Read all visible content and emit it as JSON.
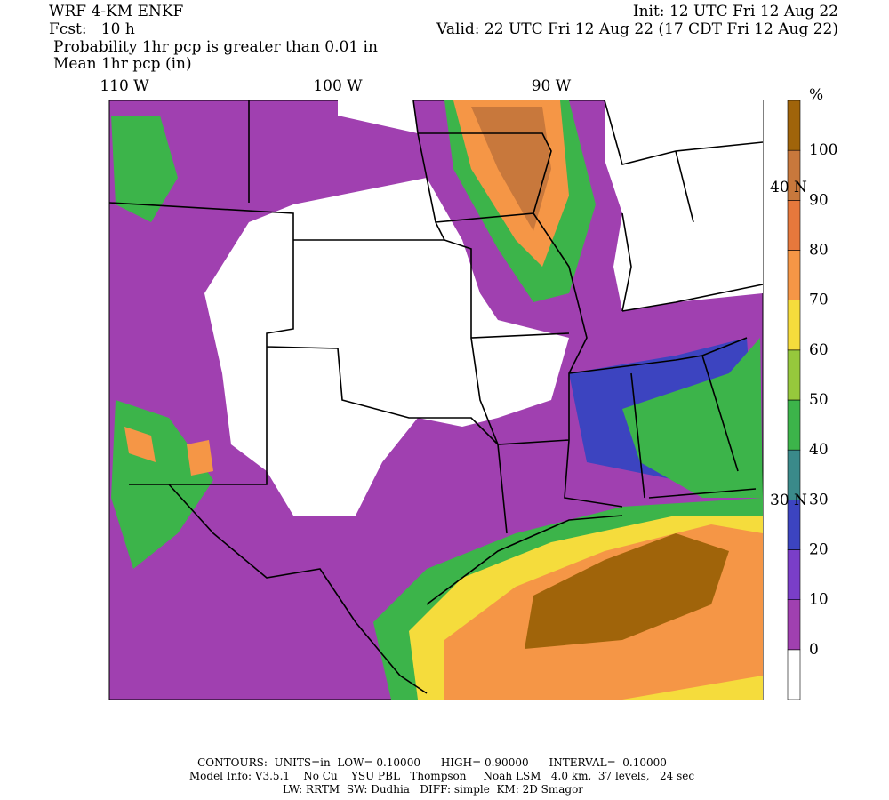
{
  "header": {
    "left": [
      "WRF 4-KM ENKF",
      "Fcst:   10 h",
      "Probability 1hr pcp is greater than 0.01 in",
      "Mean 1hr pcp (in)"
    ],
    "right": [
      "Init: 12 UTC Fri 12 Aug 22",
      "Valid: 22 UTC Fri 12 Aug 22 (17 CDT Fri 12 Aug 22)"
    ]
  },
  "map": {
    "longitude_labels": [
      "110 W",
      "100 W",
      "90 W"
    ],
    "latitude_labels": [
      "40 N",
      "30 N"
    ]
  },
  "colorbar": {
    "unit": "%",
    "levels": [
      0,
      10,
      20,
      30,
      40,
      50,
      60,
      70,
      80,
      90,
      100
    ],
    "colors": [
      "#ffffff",
      "#a040b0",
      "#7a3ec8",
      "#3c44c0",
      "#3a8a8a",
      "#3cb44a",
      "#96c83c",
      "#f5dc3c",
      "#f59646",
      "#e6783c",
      "#c8783c",
      "#a0640a"
    ]
  },
  "footer": [
    "CONTOURS:  UNITS=in  LOW= 0.10000      HIGH= 0.90000      INTERVAL=  0.10000",
    "Model Info: V3.5.1    No Cu    YSU PBL   Thompson     Noah LSM   4.0 km,  37 levels,   24 sec",
    "LW: RRTM  SW: Dudhia   DIFF: simple  KM: 2D Smagor"
  ]
}
